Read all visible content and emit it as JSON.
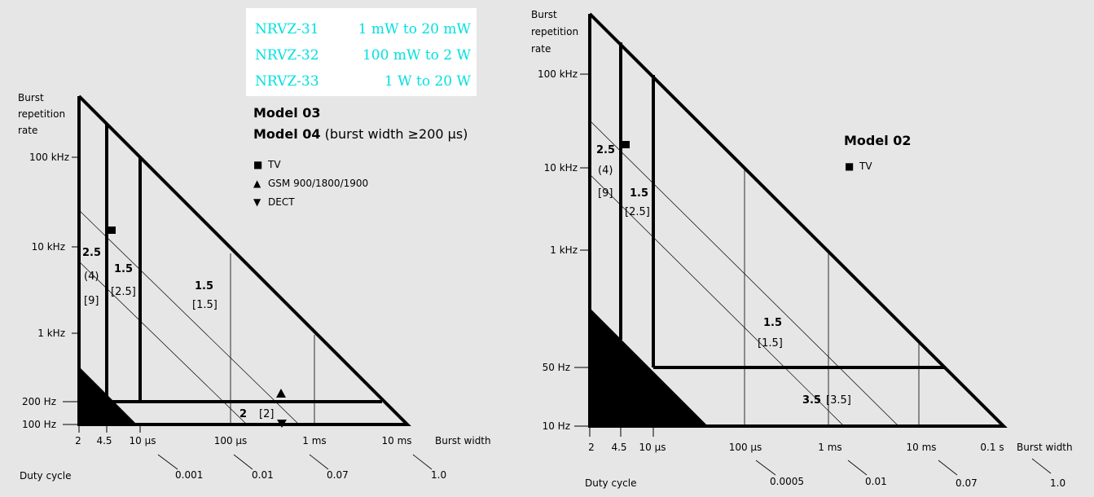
{
  "left": {
    "y_label_lines": [
      "Burst",
      "repetition",
      "rate"
    ],
    "y_ticks": [
      "100 kHz",
      "10 kHz",
      "1 kHz",
      "200 Hz",
      "100 Hz"
    ],
    "x_ticks": [
      "2",
      "4.5",
      "10 µs",
      "100 µs",
      "1 ms",
      "10 ms"
    ],
    "x_label": "Burst width",
    "duty_label": "Duty cycle",
    "duty_values": [
      "0.001",
      "0.01",
      "0.07",
      "1.0"
    ],
    "sensors": [
      {
        "model": "NRVZ-31",
        "range": "1 mW to 20 mW"
      },
      {
        "model": "NRVZ-32",
        "range": "100 mW to 2 W"
      },
      {
        "model": "NRVZ-33",
        "range": "1 W to 20 W"
      }
    ],
    "model_title_1": "Model 03",
    "model_title_2": "Model 04",
    "model_title_2_note": " (burst width ≥200 µs)",
    "legend": [
      {
        "symbol": "■",
        "label": "TV"
      },
      {
        "symbol": "▲",
        "label": "GSM 900/1800/1900"
      },
      {
        "symbol": "▼",
        "label": "DECT"
      }
    ],
    "region_labels": {
      "a_bold": "2.5",
      "a_paren": "(4)",
      "a_bracket": "[9]",
      "b_bold": "1.5",
      "b_bracket": "[2.5]",
      "c_bold": "1.5",
      "c_bracket": "[1.5]",
      "d_bold": "2",
      "d_bracket": "[2]"
    },
    "colors": {
      "sensor_text": "#00e0e0",
      "sensor_box": "#ffffff"
    }
  },
  "right": {
    "y_label_lines": [
      "Burst",
      "repetition",
      "rate"
    ],
    "y_ticks": [
      "100 kHz",
      "10 kHz",
      "1 kHz",
      "50 Hz",
      "10 Hz"
    ],
    "x_ticks": [
      "2",
      "4.5",
      "10 µs",
      "100 µs",
      "1 ms",
      "10 ms",
      "0.1 s"
    ],
    "x_label": "Burst width",
    "duty_label": "Duty cycle",
    "duty_values": [
      "0.0005",
      "0.01",
      "0.07",
      "1.0"
    ],
    "model_title": "Model 02",
    "legend": [
      {
        "symbol": "■",
        "label": "TV"
      }
    ],
    "region_labels": {
      "a_bold": "2.5",
      "a_paren": "(4)",
      "a_bracket": "[9]",
      "b_bold": "1.5",
      "b_bracket": "[2.5]",
      "c_bold": "1.5",
      "c_bracket": "[1.5]",
      "d_bold": "3.5",
      "d_bracket": "[3.5]"
    }
  }
}
